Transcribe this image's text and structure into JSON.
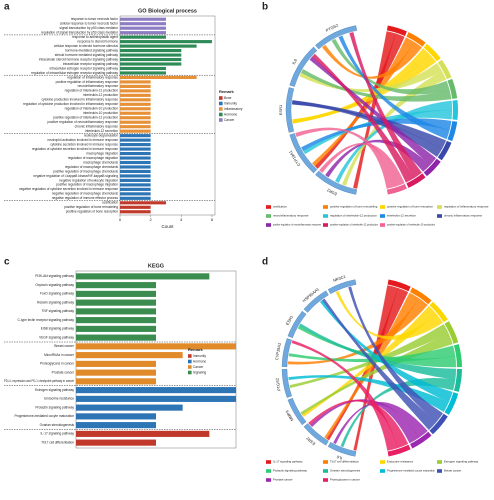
{
  "chart_data": [
    {
      "type": "bar",
      "panel_label": "a",
      "title": "GO Biological process",
      "xlabel": "Count",
      "legend_title": "Remark",
      "categories": [
        "response to tumor necrosis factor",
        "cellular response to tumor necrosis factor",
        "signal transduction by p53 class mediator",
        "regulation of signal transduction by p53 class mediator",
        "response to antineoplastic agent",
        "response to steroid hormone",
        "cellular response to steroid hormone stimulus",
        "hormone-mediated signaling pathway",
        "steroid hormone mediated signaling pathway",
        "intracellular steroid hormone receptor signaling pathway",
        "intracellular receptor signaling pathway",
        "intracellular estrogen receptor signaling pathway",
        "regulation of intracellular estrogen receptor signaling pathway",
        "regulation of inflammatory response",
        "positive regulation of inflammatory response",
        "neuroinflammatory response",
        "regulation of interleukin-12 production",
        "interleukin-12 production",
        "cytokine production involved in inflammatory response",
        "regulation of cytokine production involved in inflammatory response",
        "regulation of interleukin-10 production",
        "interleukin-10 production",
        "positive regulation of interleukin-12 production",
        "positive regulation of neuroinflammatory response",
        "chronic inflammatory response",
        "interleukin-12 secretion",
        "leukocyte degranulation",
        "neutrophil activation involved in immune response",
        "cytokine secretion involved in immune response",
        "regulation of cytokine secretion involved in immune response",
        "macrophage migration",
        "regulation of macrophage migration",
        "macrophage chemotaxis",
        "regulation of macrophage chemotaxis",
        "positive regulation of macrophage chemotaxis",
        "negative regulation of I-kappaB kinase/NF-kappaB signaling",
        "negative regulation of leukocyte migration",
        "positive regulation of macrophage migration",
        "negative regulation of cytokine secretion involved in immune response",
        "negative regulation of macrophage chemotaxis",
        "negative regulation of immune effector process",
        "ossification",
        "positive regulation of bone remodeling",
        "positive regulation of bone resorption"
      ],
      "series": [
        {
          "name": "Bone",
          "color": "#c0392b",
          "values": [
            null,
            null,
            null,
            null,
            null,
            null,
            null,
            null,
            null,
            null,
            null,
            null,
            null,
            null,
            null,
            null,
            null,
            null,
            null,
            null,
            null,
            null,
            null,
            null,
            null,
            null,
            null,
            null,
            null,
            null,
            null,
            null,
            null,
            null,
            null,
            null,
            null,
            null,
            null,
            null,
            null,
            3,
            2,
            2
          ]
        },
        {
          "name": "Immunity",
          "color": "#2e75b6",
          "values": [
            null,
            null,
            null,
            null,
            null,
            null,
            null,
            null,
            null,
            null,
            null,
            null,
            null,
            null,
            null,
            null,
            null,
            null,
            null,
            null,
            null,
            null,
            null,
            null,
            null,
            null,
            2,
            2,
            2,
            2,
            2,
            2,
            2,
            2,
            2,
            2,
            2,
            2,
            2,
            2,
            2,
            null,
            null,
            null
          ]
        },
        {
          "name": "Inflammatory",
          "color": "#e69138",
          "values": [
            null,
            null,
            null,
            null,
            null,
            null,
            null,
            null,
            null,
            null,
            null,
            null,
            null,
            5,
            2,
            2,
            2,
            2,
            2,
            2,
            2,
            2,
            2,
            2,
            2,
            2,
            null,
            null,
            null,
            null,
            null,
            null,
            null,
            null,
            null,
            null,
            null,
            null,
            null,
            null,
            null,
            null,
            null,
            null
          ]
        },
        {
          "name": "Hormone",
          "color": "#2e8b57",
          "values": [
            null,
            null,
            null,
            null,
            3,
            6,
            5,
            4,
            4,
            4,
            4,
            3,
            3,
            null,
            null,
            null,
            null,
            null,
            null,
            null,
            null,
            null,
            null,
            null,
            null,
            null,
            null,
            null,
            null,
            null,
            null,
            null,
            null,
            null,
            null,
            null,
            null,
            null,
            null,
            null,
            null,
            null,
            null,
            null
          ]
        },
        {
          "name": "Cancer",
          "color": "#8e7cc3",
          "values": [
            3,
            3,
            3,
            3,
            null,
            null,
            null,
            null,
            null,
            null,
            null,
            null,
            null,
            null,
            null,
            null,
            null,
            null,
            null,
            null,
            null,
            null,
            null,
            null,
            null,
            null,
            null,
            null,
            null,
            null,
            null,
            null,
            null,
            null,
            null,
            null,
            null,
            null,
            null,
            null,
            null,
            null,
            null,
            null
          ]
        }
      ],
      "xlim": [
        0,
        6.2
      ],
      "xticks": [
        0,
        2,
        4,
        6
      ]
    },
    {
      "type": "chord",
      "panel_label": "b",
      "genes": [
        "ESR2",
        "CYP19A1",
        "ESR1",
        "IL6",
        "PTGS2"
      ],
      "legend": [
        {
          "name": "ossification",
          "color": "#e41a1c"
        },
        {
          "name": "positive regulation of bone remodeling",
          "color": "#ff7f00"
        },
        {
          "name": "positive regulation of bone resorption",
          "color": "#ffd700"
        },
        {
          "name": "regulation of inflammatory response",
          "color": "#d4e157"
        },
        {
          "name": "neuroinflammatory response",
          "color": "#66bb6a"
        },
        {
          "name": "regulation of interleukin-12 production",
          "color": "#26c6da"
        },
        {
          "name": "interleukin-12 secretion",
          "color": "#1e88e5"
        },
        {
          "name": "chronic inflammatory response",
          "color": "#3949ab"
        },
        {
          "name": "positive regulation of neuroinflammatory response",
          "color": "#8e24aa"
        },
        {
          "name": "positive regulation of interleukin-12 production",
          "color": "#d81b60"
        },
        {
          "name": "positive regulation of interleukin-10 production",
          "color": "#f06292"
        }
      ]
    },
    {
      "type": "bar",
      "panel_label": "c",
      "title": "KEGG",
      "legend_title": "Remark",
      "categories": [
        "PI3K-Akt signaling pathway",
        "Oxytocin signaling pathway",
        "FoxO signaling pathway",
        "Relaxin signaling pathway",
        "TNF signaling pathway",
        "C-type lectin receptor signaling pathway",
        "ErbB signaling pathway",
        "VEGF signaling pathway",
        "Breast cancer",
        "MicroRNAs in cancer",
        "Proteoglycans in cancer",
        "Prostate cancer",
        "PD-L1 expression and PD-1 checkpoint pathway in cancer",
        "Estrogen signaling pathway",
        "Endocrine resistance",
        "Prolactin signaling pathway",
        "Progesterone-mediated oocyte maturation",
        "Ovarian steroidogenesis",
        "IL-17 signaling pathway",
        "Th17 cell differentiation"
      ],
      "series": [
        {
          "name": "Immunity",
          "color": "#c0392b",
          "values": [
            null,
            null,
            null,
            null,
            null,
            null,
            null,
            null,
            null,
            null,
            null,
            null,
            null,
            null,
            null,
            null,
            null,
            null,
            5,
            3
          ]
        },
        {
          "name": "Hormone",
          "color": "#2e75b6",
          "values": [
            null,
            null,
            null,
            null,
            null,
            null,
            null,
            null,
            null,
            null,
            null,
            null,
            null,
            6,
            6,
            4,
            3,
            3,
            null,
            null
          ]
        },
        {
          "name": "Cancer",
          "color": "#e08a2a",
          "values": [
            null,
            null,
            null,
            null,
            null,
            null,
            null,
            null,
            6,
            4,
            3,
            3,
            3,
            null,
            null,
            null,
            null,
            null,
            null,
            null
          ]
        },
        {
          "name": "Signaling",
          "color": "#3a8d4f",
          "values": [
            5,
            3,
            3,
            3,
            3,
            3,
            3,
            3,
            null,
            null,
            null,
            null,
            null,
            null,
            null,
            null,
            null,
            null,
            null,
            null
          ]
        }
      ],
      "xlim": [
        0,
        6
      ]
    },
    {
      "type": "chord",
      "panel_label": "d",
      "genes": [
        "IL6",
        "ESR2",
        "MMP9",
        "PTGS2",
        "CYP19A1",
        "ESR1",
        "HSP90AA1",
        "NR3C1"
      ],
      "legend": [
        {
          "name": "IL-17 signaling pathway",
          "color": "#e41a1c"
        },
        {
          "name": "Th17 cell differentiation",
          "color": "#ff7f00"
        },
        {
          "name": "Endocrine resistance",
          "color": "#ffd700"
        },
        {
          "name": "Estrogen signaling pathway",
          "color": "#9acd32"
        },
        {
          "name": "Prolactin signaling pathway",
          "color": "#2ecc71"
        },
        {
          "name": "Ovarian steroidogenesis",
          "color": "#1abc9c"
        },
        {
          "name": "Progesterone-mediated oocyte maturation",
          "color": "#00bcd4"
        },
        {
          "name": "Breast cancer",
          "color": "#3f51b5"
        },
        {
          "name": "Prostate cancer",
          "color": "#9c27b0"
        },
        {
          "name": "Proteoglycans in cancer",
          "color": "#e91e63"
        }
      ]
    }
  ]
}
